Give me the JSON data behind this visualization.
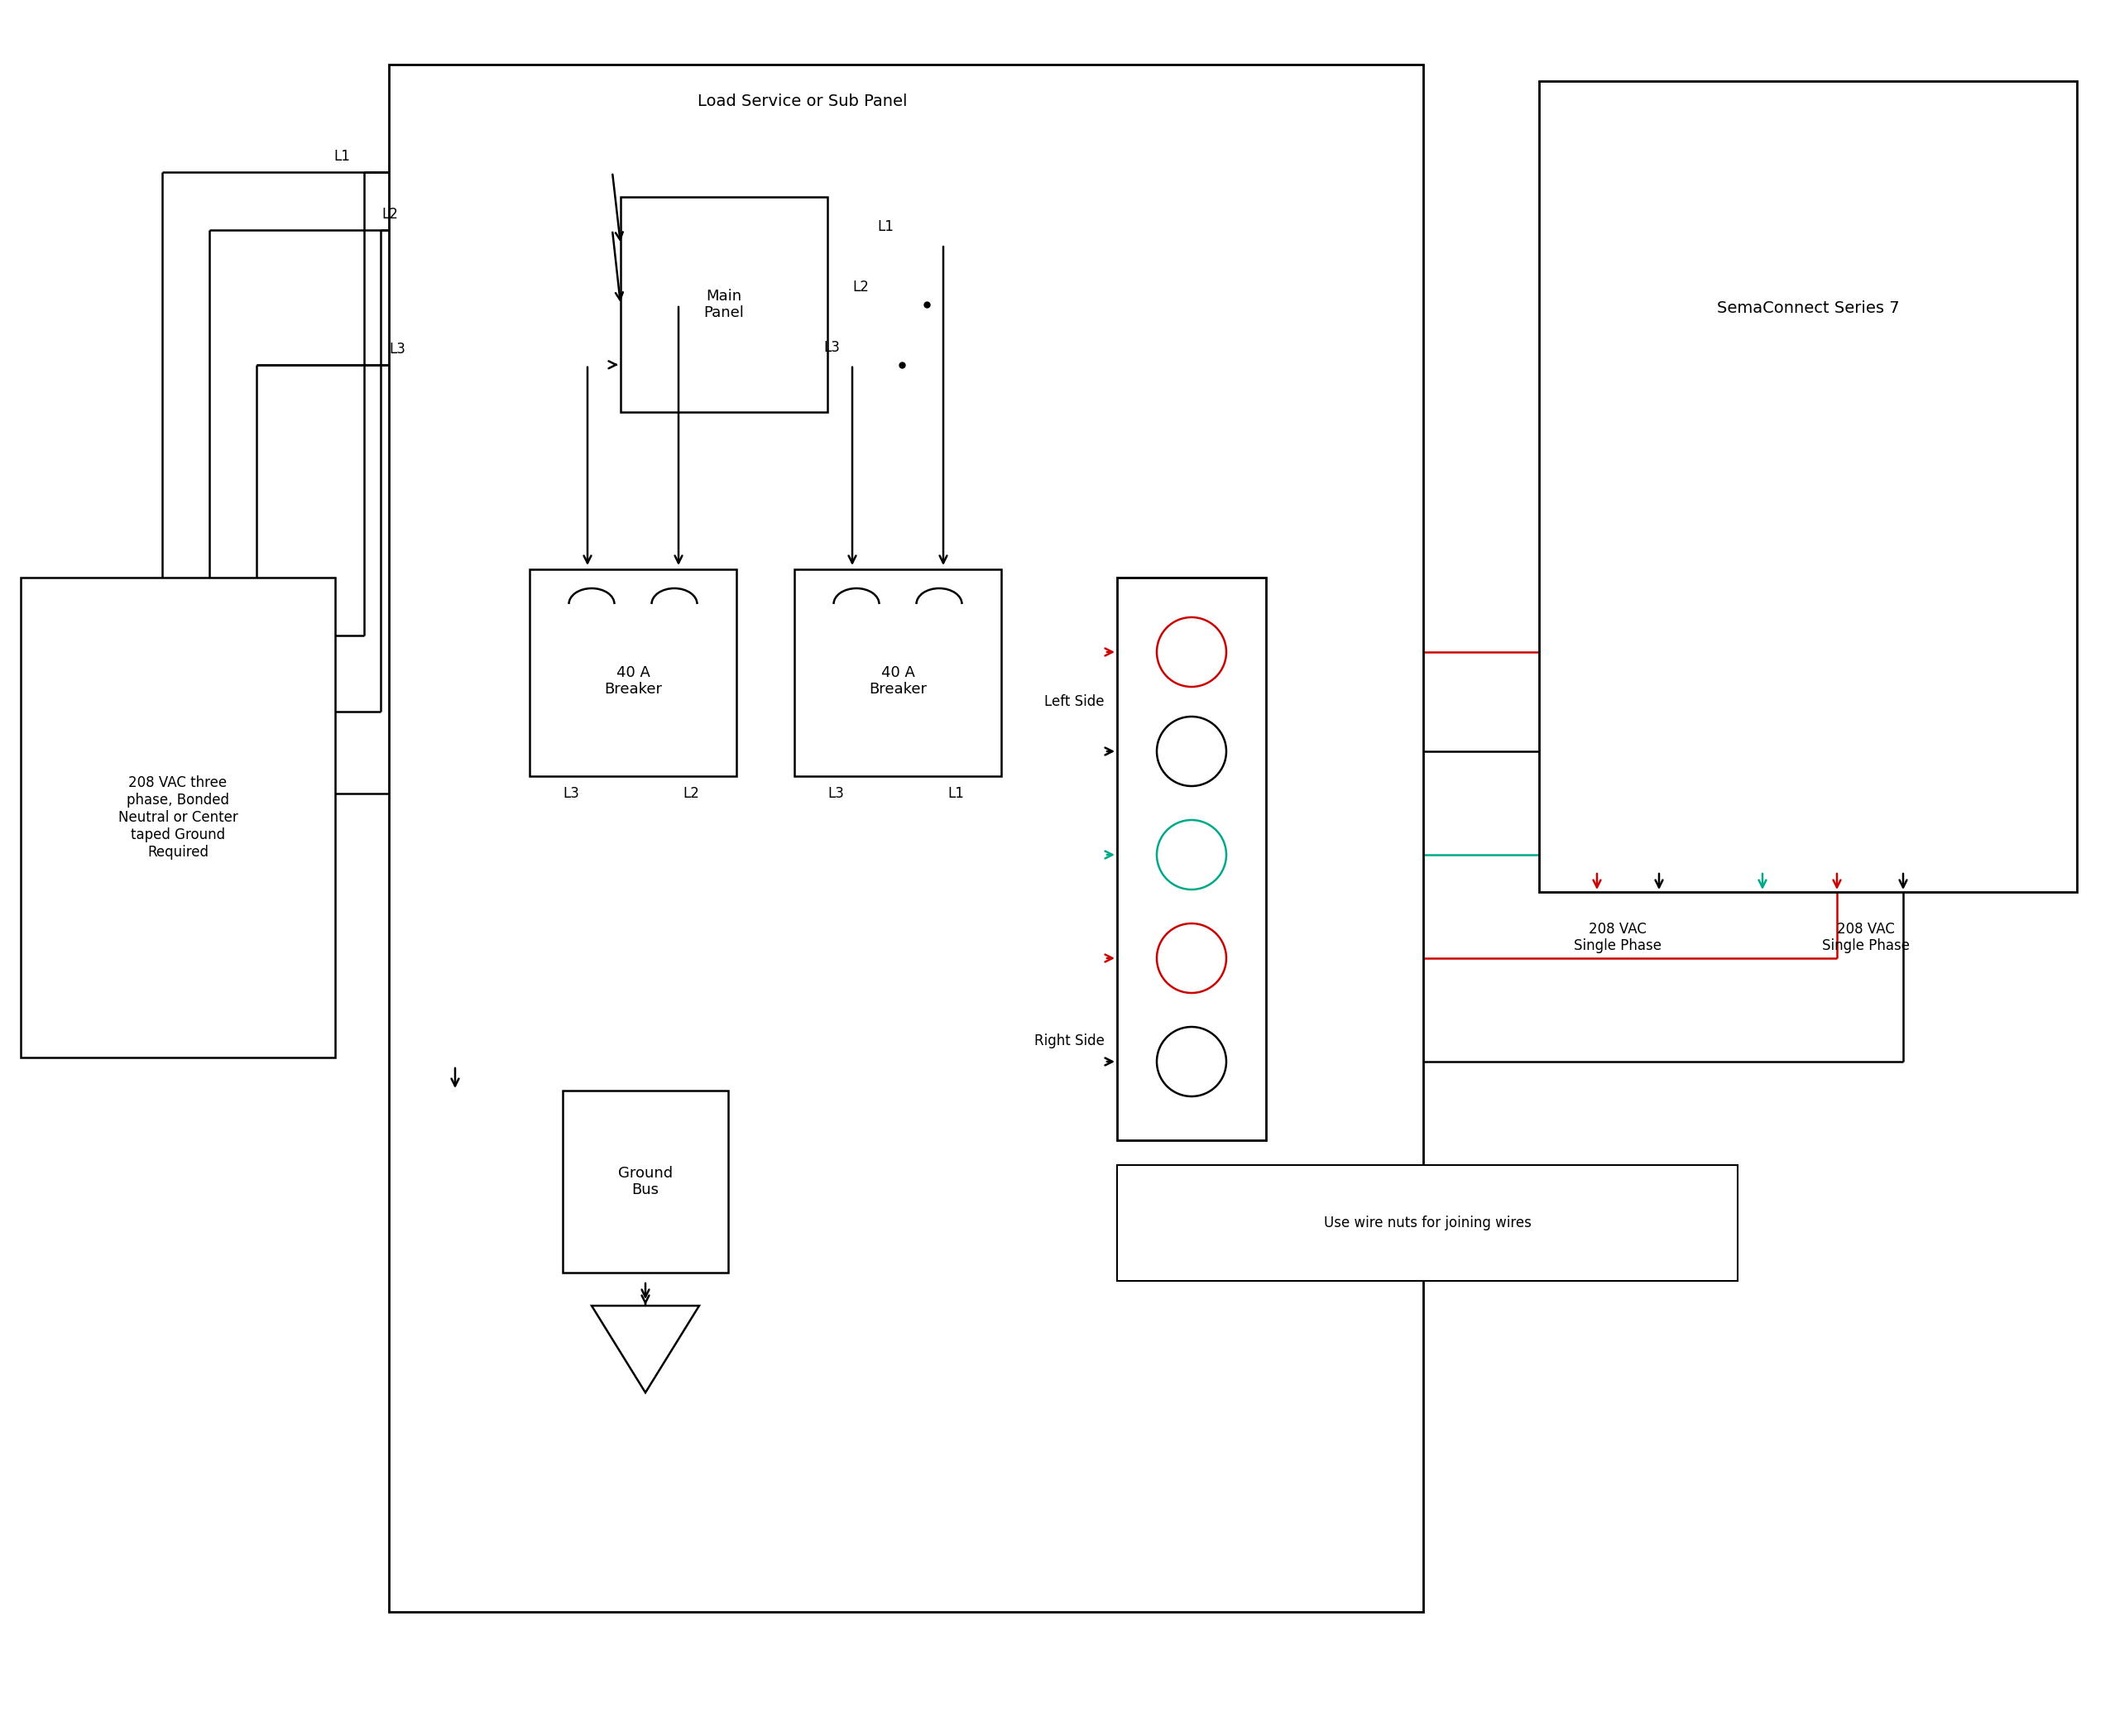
{
  "bg": "#ffffff",
  "black": "#000000",
  "red": "#cc0000",
  "green": "#00aa88",
  "panel_title": "Load Service or Sub Panel",
  "sema_title": "SemaConnect Series 7",
  "vac_text": "208 VAC three\nphase, Bonded\nNeutral or Center\ntaped Ground\nRequired",
  "mp_text": "Main\nPanel",
  "gb_text": "Ground\nBus",
  "br_text": "40 A\nBreaker",
  "left_text": "Left Side",
  "right_text": "Right Side",
  "nuts_text": "Use wire nuts for joining wires",
  "vac_sp": "208 VAC\nSingle Phase"
}
